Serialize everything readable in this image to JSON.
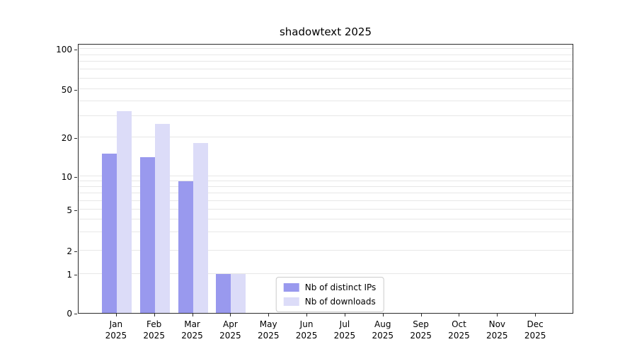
{
  "title": "shadowtext 2025",
  "colors": {
    "distinct_ips": "#9999ee",
    "downloads": "#dcdcf8",
    "gridline": "#e7e7e7",
    "axis": "#2b2b2b"
  },
  "legend": {
    "items": [
      {
        "label": "Nb of distinct IPs",
        "series_index": 0
      },
      {
        "label": "Nb of downloads",
        "series_index": 1
      }
    ]
  },
  "chart_data": {
    "type": "bar",
    "title": "shadowtext 2025",
    "categories": [
      "Jan",
      "Feb",
      "Mar",
      "Apr",
      "May",
      "Jun",
      "Jul",
      "Aug",
      "Sep",
      "Oct",
      "Nov",
      "Dec"
    ],
    "year": "2025",
    "series": [
      {
        "name": "Nb of distinct IPs",
        "color": "#9999ee",
        "values": [
          15,
          14,
          9,
          1,
          0,
          0,
          0,
          0,
          0,
          0,
          0,
          0
        ]
      },
      {
        "name": "Nb of downloads",
        "color": "#dcdcf8",
        "values": [
          33,
          26,
          18,
          1,
          0,
          0,
          0,
          0,
          0,
          0,
          0,
          0
        ]
      }
    ],
    "xlabel": "",
    "ylabel": "",
    "y_scale": "symlog",
    "y_ticks": [
      0,
      1,
      2,
      5,
      10,
      20,
      50,
      100
    ],
    "ylim": [
      0,
      110
    ],
    "grid": true,
    "gridline_values": [
      1,
      2,
      3,
      4,
      5,
      6,
      7,
      8,
      9,
      10,
      20,
      30,
      40,
      50,
      60,
      70,
      80,
      90,
      100
    ],
    "y_anchor_fractions": [
      [
        0,
        0
      ],
      [
        1,
        0.144
      ],
      [
        2,
        0.231
      ],
      [
        5,
        0.383
      ],
      [
        10,
        0.507
      ],
      [
        20,
        0.651
      ],
      [
        50,
        0.829
      ],
      [
        100,
        0.979
      ]
    ],
    "legend_position": "lower center"
  }
}
